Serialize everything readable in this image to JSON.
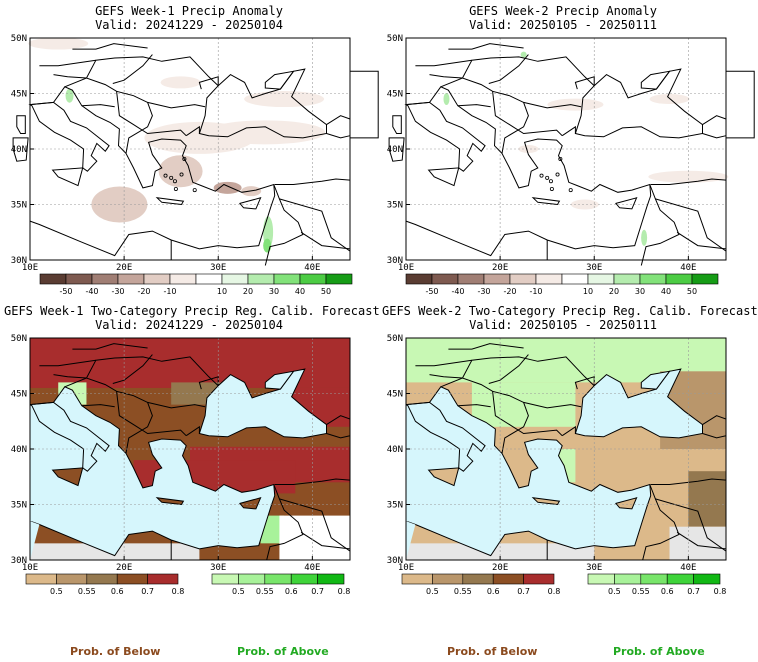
{
  "panels": [
    {
      "id": "p1",
      "title": "GEFS Week-1 Precip Anomaly",
      "valid": "Valid: 20241229 - 20250104",
      "type": "anomaly",
      "week": 1
    },
    {
      "id": "p2",
      "title": "GEFS Week-2 Precip Anomaly",
      "valid": "Valid: 20250105 - 20250111",
      "type": "anomaly",
      "week": 2
    },
    {
      "id": "p3",
      "title": "GEFS Week-1 Two-Category Precip Reg. Calib. Forecast",
      "valid": "Valid: 20241229 - 20250104",
      "type": "prob",
      "week": 1
    },
    {
      "id": "p4",
      "title": "GEFS Week-2 Two-Category Precip Reg. Calib. Forecast",
      "valid": "Valid: 20250105 - 20250111",
      "type": "prob",
      "week": 2
    }
  ],
  "axes": {
    "lat_labels": [
      "30N",
      "35N",
      "40N",
      "45N",
      "50N"
    ],
    "lon_labels": [
      "10E",
      "20E",
      "30E",
      "40E"
    ]
  },
  "anomaly_colorbar": {
    "labels": [
      "-50",
      "-40",
      "-30",
      "-20",
      "-10",
      "10",
      "20",
      "30",
      "40",
      "50"
    ],
    "colors": [
      "#5a3c32",
      "#7e5a50",
      "#a07e74",
      "#c4a59b",
      "#e2cdc4",
      "#f5ebe6",
      "#ffffff",
      "#e6f7e4",
      "#b4ecae",
      "#82e27a",
      "#4ccc44",
      "#169c16"
    ]
  },
  "prob_below_colorbar": {
    "labels": [
      "0.5",
      "0.55",
      "0.6",
      "0.7",
      "0.8"
    ],
    "colors": [
      "#dcb98a",
      "#b9966b",
      "#94784f",
      "#8c4f24",
      "#a82d2d"
    ]
  },
  "prob_above_colorbar": {
    "labels": [
      "0.5",
      "0.55",
      "0.6",
      "0.7",
      "0.8"
    ],
    "colors": [
      "#c8f8b4",
      "#a8f29a",
      "#78e56a",
      "#3fd43a",
      "#11b814"
    ]
  },
  "legend": {
    "below": "Prob. of Below",
    "above": "Prob. of Above"
  },
  "colors": {
    "below_text": "#8b4a1e",
    "above_text": "#22aa22",
    "sea": "#d6f6fc",
    "land_brown": "#8c4f24",
    "land_red": "#a82d2d",
    "land_tan": "#dcb98a",
    "land_green": "#c8f8b4",
    "grey": "#e6e6e6"
  }
}
